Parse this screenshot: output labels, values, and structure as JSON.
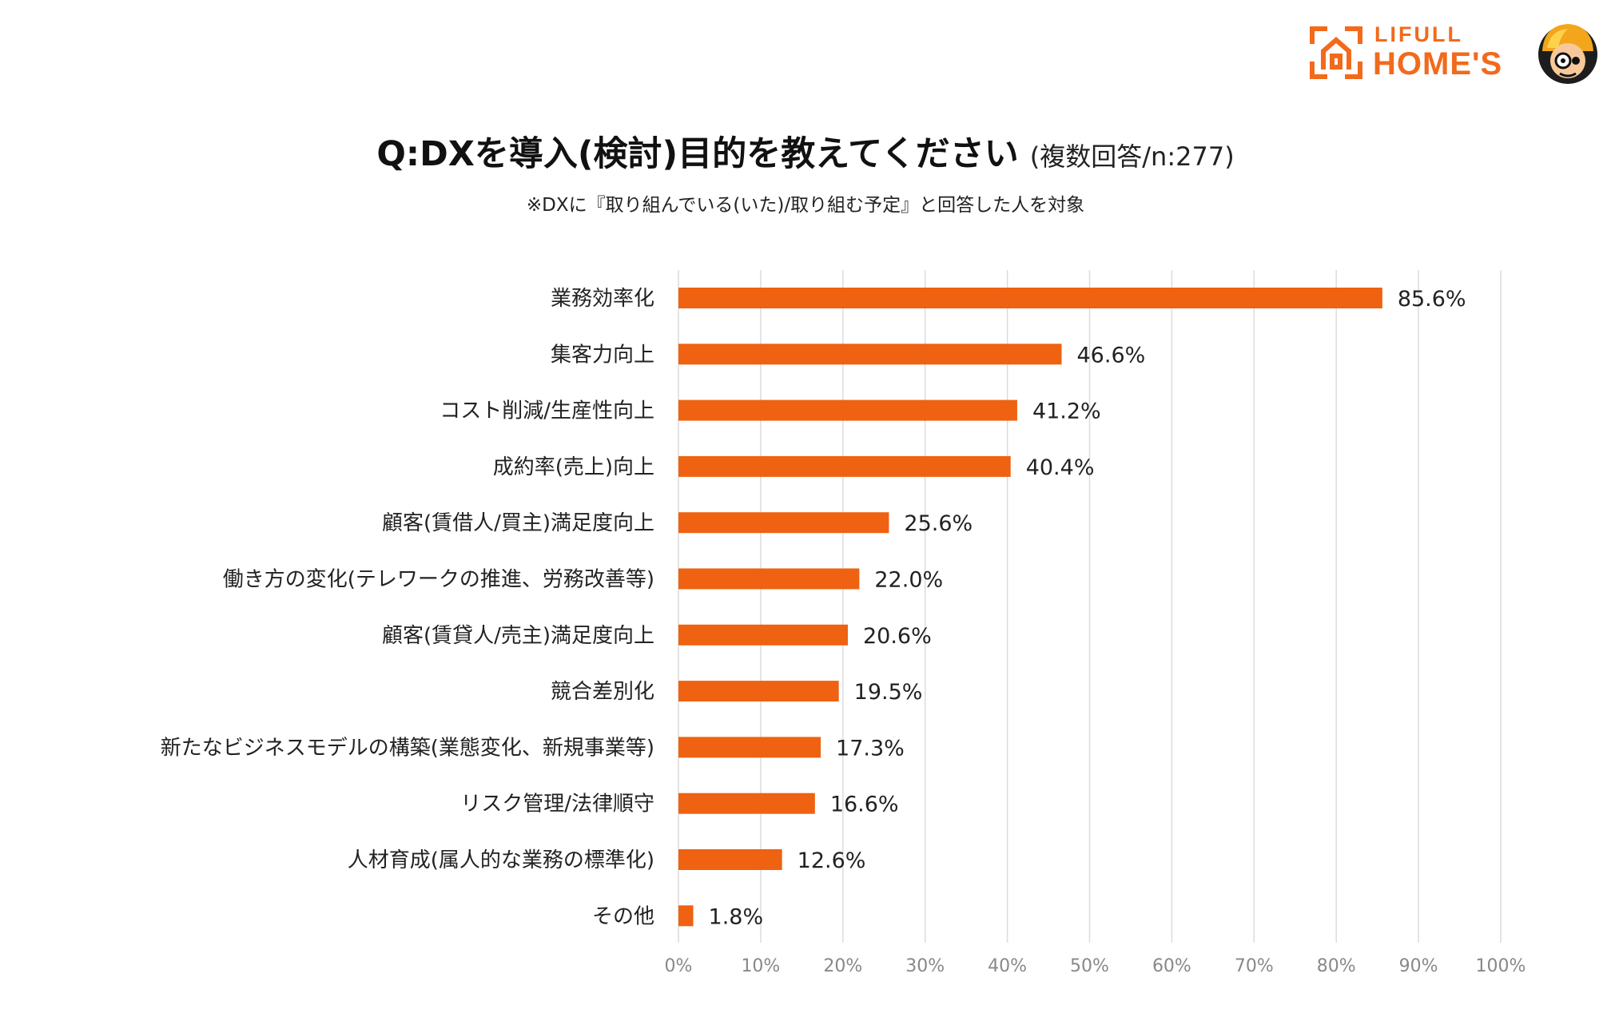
{
  "title": {
    "main": "Q:DXを導入(検討)目的を教えてください",
    "sub": "(複数回答/n:277)"
  },
  "subtitle": "※DXに『取り組んでいる(いた)/取り組む予定』と回答した人を対象",
  "logo": {
    "line1": "LIFULL",
    "line2": "HOME'S",
    "accent": "#f26a1b",
    "icons": [
      "house-bracket-icon",
      "mascot-icon"
    ]
  },
  "chart_data": {
    "type": "bar",
    "orientation": "horizontal",
    "title": "Q:DXを導入(検討)目的を教えてください",
    "categories": [
      "業務効率化",
      "集客力向上",
      "コスト削減/生産性向上",
      "成約率(売上)向上",
      "顧客(賃借人/買主)満足度向上",
      "働き方の変化(テレワークの推進、労務改善等)",
      "顧客(賃貸人/売主)満足度向上",
      "競合差別化",
      "新たなビジネスモデルの構築(業態変化、新規事業等)",
      "リスク管理/法律順守",
      "人材育成(属人的な業務の標準化)",
      "その他"
    ],
    "values": [
      85.6,
      46.6,
      41.2,
      40.4,
      25.6,
      22.0,
      20.6,
      19.5,
      17.3,
      16.6,
      12.6,
      1.8
    ],
    "value_labels": [
      "85.6%",
      "46.6%",
      "41.2%",
      "40.4%",
      "25.6%",
      "22.0%",
      "20.6%",
      "19.5%",
      "17.3%",
      "16.6%",
      "12.6%",
      "1.8%"
    ],
    "xlim": [
      0,
      100
    ],
    "xticks": [
      "0%",
      "10%",
      "20%",
      "30%",
      "40%",
      "50%",
      "60%",
      "70%",
      "80%",
      "90%",
      "100%"
    ],
    "grid": true,
    "bar_color": "#ee6211",
    "grid_color": "#dcdcdc"
  }
}
